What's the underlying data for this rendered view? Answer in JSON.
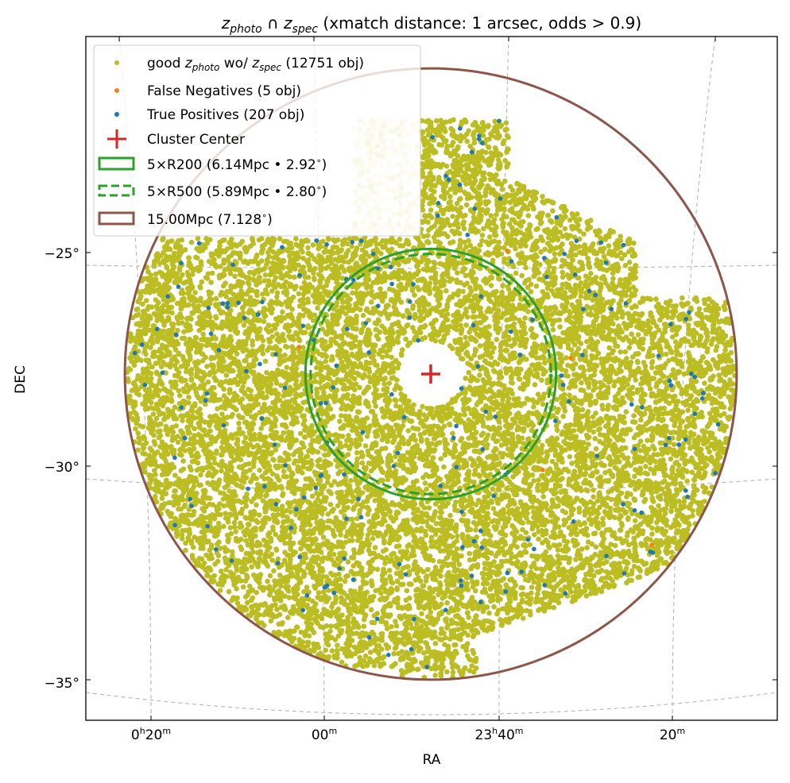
{
  "chart_data": {
    "type": "scatter",
    "title": {
      "z1": "z",
      "s1": "photo",
      "mid": " ∩ ",
      "z2": "z",
      "s2": "spec",
      "rest": " (xmatch distance: 1 arcsec, odds > 0.9)"
    },
    "xlabel": "RA",
    "ylabel": "DEC",
    "x_ticks": [
      {
        "h": "0",
        "hs": "h",
        "m": "20",
        "ms": "m"
      },
      {
        "h": "",
        "hs": "",
        "m": "00",
        "ms": "m"
      },
      {
        "h": "23",
        "hs": "h",
        "m": "40",
        "ms": "m"
      },
      {
        "h": "",
        "hs": "",
        "m": "20",
        "ms": "m"
      }
    ],
    "y_ticks": [
      "−25°",
      "−30°",
      "−35°"
    ],
    "dec_tick_values": [
      -25,
      -30,
      -35
    ],
    "cluster_center": {
      "ra_deg": 356.95,
      "dec_deg": -27.85
    },
    "circles_deg": {
      "r200x5": 2.92,
      "r500x5": 2.8,
      "mpc15": 7.128
    },
    "series": [
      {
        "name": "good_photo",
        "count": 12751,
        "color": "#bcbd22"
      },
      {
        "name": "false_negatives",
        "count": 5,
        "color": "#ff7f0e",
        "points_offset_deg": [
          [
            -1.78,
            -24.96
          ],
          [
            -3.26,
            -27.47
          ],
          [
            -2.61,
            -30.09
          ],
          [
            -5.15,
            -31.84
          ],
          [
            3.07,
            -27.21
          ]
        ]
      },
      {
        "name": "true_positives",
        "count": 207,
        "color": "#1f77b4"
      }
    ],
    "legend": {
      "placement": "top-left",
      "good": {
        "pre": "good ",
        "z1": "z",
        "s1": "photo",
        "mid": " wo/ ",
        "z2": "z",
        "s2": "spec",
        "post": " (12751 obj)"
      },
      "fn": "False Negatives (5 obj)",
      "tp": "True Positives (207 obj)",
      "center": "Cluster Center",
      "r200": "5×R200 (6.14Mpc • 2.92",
      "r500": "5×R500 (5.89Mpc • 2.80",
      "mpc": "15.00Mpc (7.128",
      "deg": "∘",
      "close": ")"
    },
    "colors": {
      "center": "#d62728",
      "r200": "#2ca02c",
      "mpc": "#8c564b",
      "grid": "#b0b0b0"
    }
  }
}
